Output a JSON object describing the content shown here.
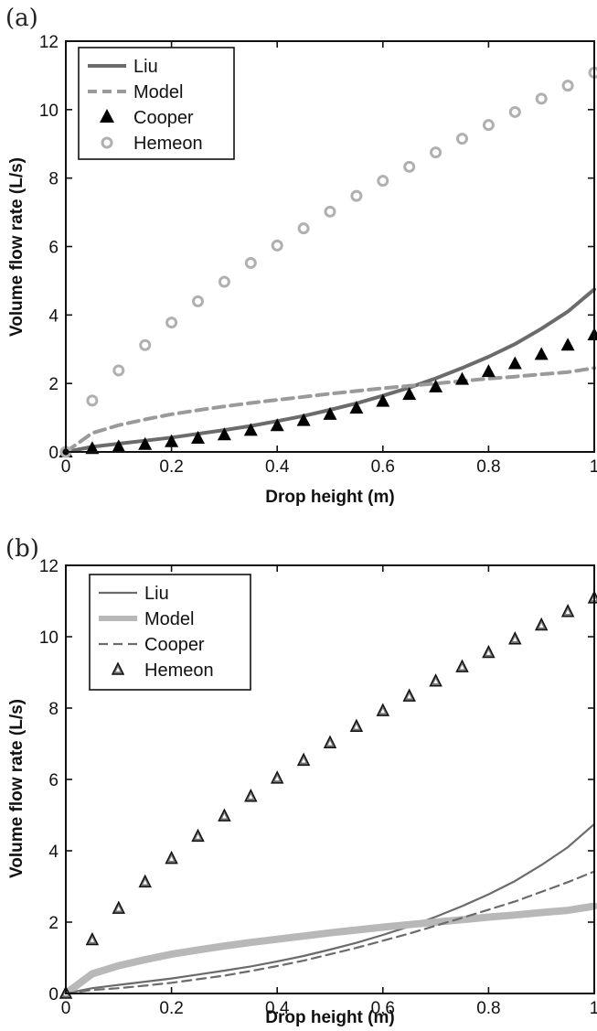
{
  "chart_data": [
    {
      "type": "line",
      "panel_label": "(a)",
      "xlabel": "Drop height (m)",
      "ylabel": "Volume flow rate (L/s)",
      "xlim": [
        0,
        1
      ],
      "ylim": [
        0,
        12
      ],
      "xticks": [
        "0",
        "0.2",
        "0.4",
        "0.6",
        "0.8",
        "1"
      ],
      "yticks": [
        "0",
        "2",
        "4",
        "6",
        "8",
        "10",
        "12"
      ],
      "legend_position": "top-left",
      "grid": false,
      "x": [
        0,
        0.05,
        0.1,
        0.15,
        0.2,
        0.25,
        0.3,
        0.35,
        0.4,
        0.45,
        0.5,
        0.55,
        0.6,
        0.65,
        0.7,
        0.75,
        0.8,
        0.85,
        0.9,
        0.95,
        1.0
      ],
      "series": [
        {
          "name": "Liu",
          "style": "solid-line",
          "color": "#6b6b6b",
          "values": [
            0,
            0.15,
            0.24,
            0.33,
            0.42,
            0.53,
            0.64,
            0.76,
            0.9,
            1.05,
            1.23,
            1.42,
            1.64,
            1.88,
            2.15,
            2.45,
            2.78,
            3.15,
            3.6,
            4.1,
            4.75
          ]
        },
        {
          "name": "Model",
          "style": "dashed-line",
          "color": "#9a9a9a",
          "values": [
            0,
            0.55,
            0.78,
            0.95,
            1.1,
            1.22,
            1.33,
            1.43,
            1.52,
            1.61,
            1.7,
            1.78,
            1.86,
            1.93,
            2.0,
            2.07,
            2.14,
            2.2,
            2.27,
            2.33,
            2.45
          ]
        },
        {
          "name": "Cooper",
          "style": "filled-triangle-markers",
          "color": "#000000",
          "values": [
            0,
            0.1,
            0.15,
            0.22,
            0.3,
            0.4,
            0.5,
            0.63,
            0.77,
            0.92,
            1.1,
            1.28,
            1.48,
            1.68,
            1.9,
            2.12,
            2.35,
            2.58,
            2.85,
            3.12,
            3.42
          ]
        },
        {
          "name": "Hemeon",
          "style": "open-circle-markers",
          "color": "#b0b0b0",
          "values": [
            0,
            1.5,
            2.38,
            3.12,
            3.78,
            4.4,
            4.97,
            5.52,
            6.03,
            6.53,
            7.02,
            7.48,
            7.92,
            8.33,
            8.75,
            9.15,
            9.55,
            9.93,
            10.32,
            10.7,
            11.08
          ]
        }
      ]
    },
    {
      "type": "line",
      "panel_label": "(b)",
      "xlabel": "Drop height (m)",
      "ylabel": "Volume flow rate (L/s)",
      "xlim": [
        0,
        1
      ],
      "ylim": [
        0,
        12
      ],
      "xticks": [
        "0",
        "0.2",
        "0.4",
        "0.6",
        "0.8",
        "1"
      ],
      "yticks": [
        "0",
        "2",
        "4",
        "6",
        "8",
        "10",
        "12"
      ],
      "legend_position": "top-left",
      "grid": false,
      "x": [
        0,
        0.05,
        0.1,
        0.15,
        0.2,
        0.25,
        0.3,
        0.35,
        0.4,
        0.45,
        0.5,
        0.55,
        0.6,
        0.65,
        0.7,
        0.75,
        0.8,
        0.85,
        0.9,
        0.95,
        1.0
      ],
      "series": [
        {
          "name": "Liu",
          "style": "thin-solid-line",
          "color": "#6b6b6b",
          "values": [
            0,
            0.15,
            0.24,
            0.33,
            0.42,
            0.53,
            0.64,
            0.76,
            0.9,
            1.05,
            1.23,
            1.42,
            1.64,
            1.88,
            2.15,
            2.45,
            2.78,
            3.15,
            3.6,
            4.1,
            4.75
          ]
        },
        {
          "name": "Model",
          "style": "thick-light-line",
          "color": "#b8b8b8",
          "values": [
            0,
            0.55,
            0.78,
            0.95,
            1.1,
            1.22,
            1.33,
            1.43,
            1.52,
            1.61,
            1.7,
            1.78,
            1.86,
            1.93,
            2.0,
            2.07,
            2.14,
            2.2,
            2.27,
            2.33,
            2.45
          ]
        },
        {
          "name": "Cooper",
          "style": "dashed-line",
          "color": "#6b6b6b",
          "values": [
            0,
            0.1,
            0.15,
            0.22,
            0.3,
            0.4,
            0.5,
            0.63,
            0.77,
            0.92,
            1.1,
            1.28,
            1.48,
            1.68,
            1.9,
            2.12,
            2.35,
            2.58,
            2.85,
            3.12,
            3.42
          ]
        },
        {
          "name": "Hemeon",
          "style": "open-triangle-markers",
          "color": "#333333",
          "values": [
            0,
            1.5,
            2.38,
            3.12,
            3.78,
            4.4,
            4.97,
            5.52,
            6.03,
            6.53,
            7.02,
            7.48,
            7.92,
            8.33,
            8.75,
            9.15,
            9.55,
            9.93,
            10.32,
            10.7,
            11.08
          ]
        }
      ]
    }
  ]
}
